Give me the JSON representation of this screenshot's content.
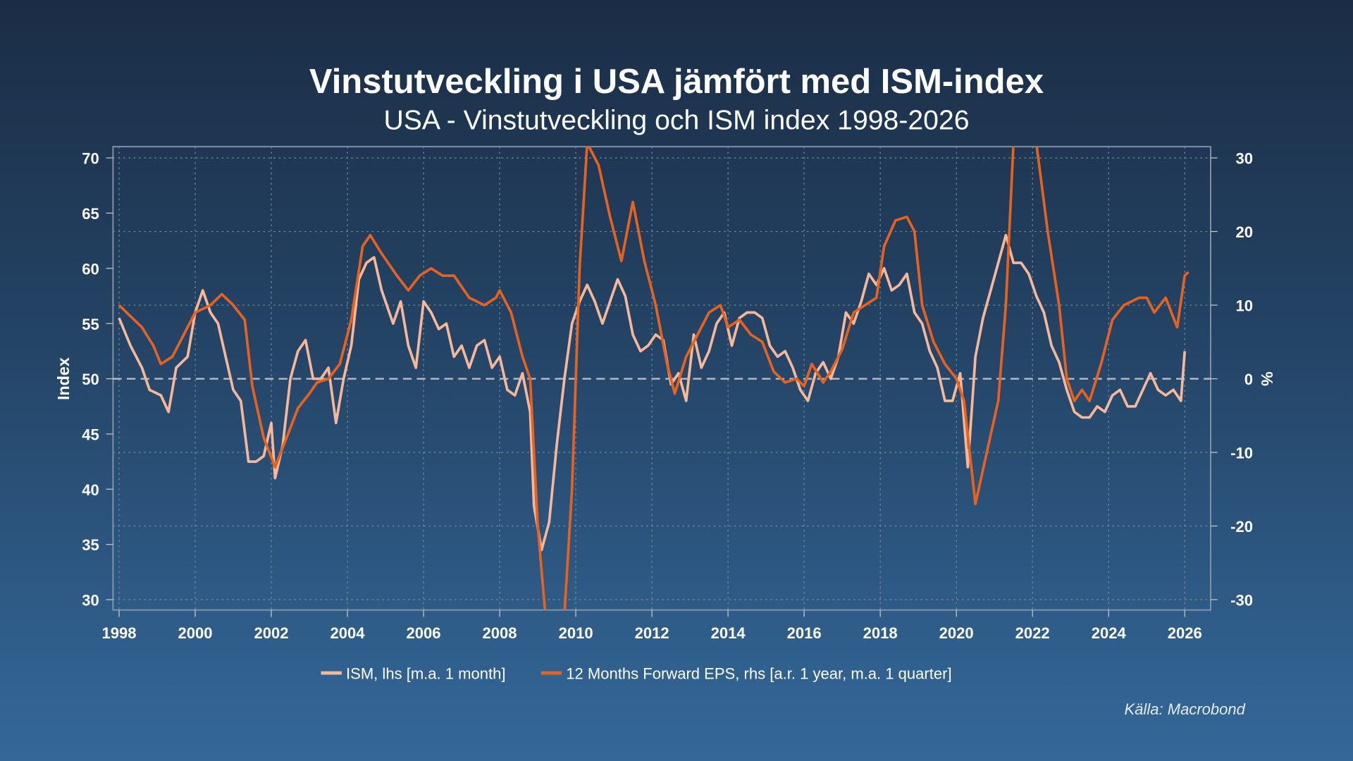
{
  "title": "Vinstutveckling i USA jämfört med ISM-index",
  "subtitle": "USA - Vinstutveckling och ISM index 1998-2026",
  "source": "Källa: Macrobond",
  "chart_data": {
    "type": "line",
    "ylabel": "Index",
    "y2label": "%",
    "xlim": [
      1997.9,
      2026.7
    ],
    "ylim": [
      29,
      71
    ],
    "y2lim": [
      -32.5,
      32.5
    ],
    "xticks": [
      "1998",
      "2000",
      "2002",
      "2004",
      "2006",
      "2008",
      "2010",
      "2012",
      "2014",
      "2016",
      "2018",
      "2020",
      "2022",
      "2024",
      "2026"
    ],
    "yticks": [
      "30",
      "35",
      "40",
      "45",
      "50",
      "55",
      "60",
      "65",
      "70"
    ],
    "y2ticks": [
      "-30",
      "-20",
      "-10",
      "0",
      "10",
      "20",
      "30"
    ],
    "grid": true,
    "legend_position": "bottom",
    "series": [
      {
        "name": "ISM, lhs [m.a. 1 month]",
        "axis": "left",
        "color": "#f7b899",
        "x": [
          1998.0,
          1998.3,
          1998.6,
          1998.8,
          1999.1,
          1999.3,
          1999.5,
          1999.8,
          2000.0,
          2000.2,
          2000.4,
          2000.6,
          2000.8,
          2001.0,
          2001.2,
          2001.4,
          2001.6,
          2001.8,
          2002.0,
          2002.1,
          2002.3,
          2002.5,
          2002.7,
          2002.9,
          2003.1,
          2003.3,
          2003.5,
          2003.7,
          2003.9,
          2004.1,
          2004.3,
          2004.5,
          2004.7,
          2004.9,
          2005.2,
          2005.4,
          2005.6,
          2005.8,
          2006.0,
          2006.2,
          2006.4,
          2006.6,
          2006.8,
          2007.0,
          2007.2,
          2007.4,
          2007.6,
          2007.8,
          2008.0,
          2008.2,
          2008.4,
          2008.6,
          2008.8,
          2008.9,
          2009.1,
          2009.3,
          2009.5,
          2009.7,
          2009.9,
          2010.1,
          2010.3,
          2010.5,
          2010.7,
          2010.9,
          2011.1,
          2011.3,
          2011.5,
          2011.7,
          2011.9,
          2012.1,
          2012.3,
          2012.5,
          2012.7,
          2012.9,
          2013.1,
          2013.3,
          2013.5,
          2013.7,
          2013.9,
          2014.1,
          2014.3,
          2014.5,
          2014.7,
          2014.9,
          2015.1,
          2015.3,
          2015.5,
          2015.7,
          2015.9,
          2016.1,
          2016.3,
          2016.5,
          2016.7,
          2016.9,
          2017.1,
          2017.3,
          2017.5,
          2017.7,
          2017.9,
          2018.1,
          2018.3,
          2018.5,
          2018.7,
          2018.9,
          2019.1,
          2019.3,
          2019.5,
          2019.7,
          2019.9,
          2020.1,
          2020.3,
          2020.5,
          2020.7,
          2020.9,
          2021.1,
          2021.3,
          2021.5,
          2021.7,
          2021.9,
          2022.1,
          2022.3,
          2022.5,
          2022.7,
          2022.9,
          2023.1,
          2023.3,
          2023.5,
          2023.7,
          2023.9,
          2024.1,
          2024.3,
          2024.5,
          2024.7,
          2024.9,
          2025.1,
          2025.3,
          2025.5,
          2025.7,
          2025.9,
          2026.0
        ],
        "y": [
          55.5,
          53,
          51,
          49,
          48.5,
          47,
          51,
          52,
          56,
          58,
          56,
          55,
          52,
          49,
          48,
          42.5,
          42.5,
          43,
          46,
          41,
          44,
          50,
          52.5,
          53.5,
          50,
          50,
          51,
          46,
          50,
          53,
          59,
          60.5,
          61,
          58,
          55,
          57,
          53,
          51,
          57,
          56,
          54.5,
          55,
          52,
          53,
          51,
          53,
          53.5,
          51,
          52,
          49,
          48.5,
          50.5,
          47,
          38.5,
          34.5,
          37,
          44,
          50,
          55,
          57,
          58.5,
          57,
          55,
          57,
          59,
          57.5,
          54,
          52.5,
          53,
          54,
          53.5,
          49.5,
          50.5,
          48,
          54,
          51,
          52.5,
          55,
          56,
          53,
          55.5,
          56,
          56,
          55.5,
          53,
          52,
          52.5,
          51,
          49,
          48,
          50.5,
          51.5,
          50,
          52,
          56,
          55,
          57,
          59.5,
          58.5,
          60,
          58,
          58.5,
          59.5,
          56,
          55,
          52.5,
          51,
          48,
          48,
          50.5,
          42,
          52,
          55.5,
          58,
          60.5,
          63,
          60.5,
          60.5,
          59.5,
          57.5,
          56,
          53,
          51.5,
          49,
          47,
          46.5,
          46.5,
          47.5,
          47,
          48.5,
          49,
          47.5,
          47.5,
          49,
          50.5,
          49,
          48.5,
          49,
          48,
          52.5
        ]
      },
      {
        "name": "12 Months Forward EPS, rhs [a.r. 1 year, m.a. 1 quarter]",
        "axis": "right",
        "color": "#e8621f",
        "x": [
          1998.0,
          1998.3,
          1998.6,
          1998.9,
          1999.1,
          1999.4,
          1999.7,
          2000.0,
          2000.4,
          2000.7,
          2001.0,
          2001.3,
          2001.5,
          2001.8,
          2002.1,
          2002.4,
          2002.7,
          2003.0,
          2003.2,
          2003.5,
          2003.8,
          2004.1,
          2004.4,
          2004.6,
          2004.9,
          2005.3,
          2005.6,
          2005.9,
          2006.2,
          2006.5,
          2006.8,
          2007.2,
          2007.6,
          2007.9,
          2008.0,
          2008.3,
          2008.6,
          2008.8,
          2009.0,
          2009.2,
          2009.7,
          2009.9,
          2010.1,
          2010.3,
          2010.6,
          2010.9,
          2011.2,
          2011.5,
          2011.8,
          2012.1,
          2012.4,
          2012.6,
          2012.9,
          2013.2,
          2013.5,
          2013.8,
          2014.0,
          2014.3,
          2014.6,
          2014.9,
          2015.2,
          2015.5,
          2015.8,
          2016.0,
          2016.2,
          2016.5,
          2016.7,
          2017.0,
          2017.3,
          2017.6,
          2017.9,
          2018.1,
          2018.4,
          2018.7,
          2018.9,
          2019.1,
          2019.4,
          2019.7,
          2020.0,
          2020.2,
          2020.5,
          2020.8,
          2021.1,
          2021.3,
          2021.5,
          2022.1,
          2022.4,
          2022.7,
          2022.9,
          2023.1,
          2023.3,
          2023.5,
          2023.8,
          2024.1,
          2024.4,
          2024.8,
          2025.0,
          2025.2,
          2025.5,
          2025.8,
          2026.0,
          2026.1
        ],
        "y": [
          10,
          8.5,
          7,
          4.5,
          2,
          3,
          6,
          9,
          10,
          11.5,
          10,
          8,
          -1,
          -8,
          -12,
          -8,
          -4,
          -2,
          -0.5,
          0,
          2,
          8,
          18,
          19.5,
          17,
          14,
          12,
          14,
          15,
          14,
          14,
          11,
          10,
          11,
          12,
          9,
          3,
          0,
          -20,
          -32,
          -32,
          -15,
          15,
          32,
          29,
          22,
          16,
          24,
          16,
          10,
          2,
          -2,
          3,
          6,
          9,
          10,
          7,
          8,
          6,
          5,
          1,
          -0.5,
          0,
          -1,
          2,
          -0.5,
          1,
          4,
          9,
          10,
          11,
          18,
          21.5,
          22,
          20,
          10,
          5,
          2,
          0,
          -3,
          -17,
          -10,
          -3,
          10,
          32,
          32,
          20,
          10,
          0,
          -3,
          -1.5,
          -3,
          2,
          8,
          10,
          11,
          11,
          9,
          11,
          7,
          14,
          14.5
        ]
      }
    ]
  }
}
